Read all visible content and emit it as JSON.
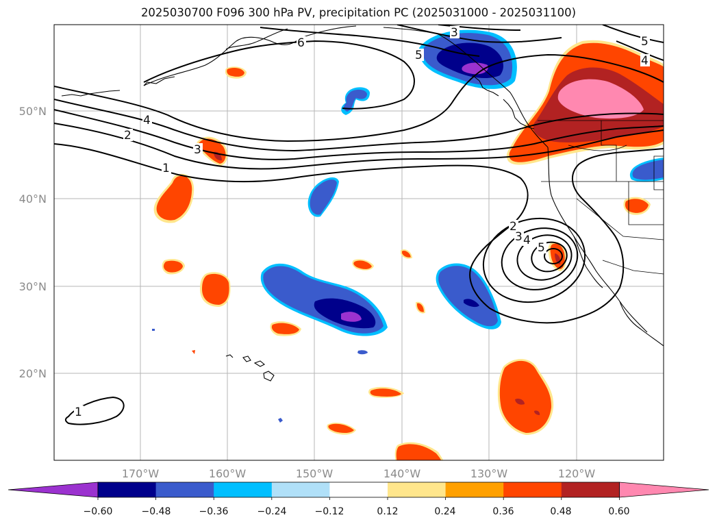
{
  "title": "2025030700 F096 300 hPa PV, precipitation PC (2025031000 - 2025031100)",
  "lon_labels": [
    "170°W",
    "160°W",
    "150°W",
    "140°W",
    "130°W",
    "120°W"
  ],
  "lat_labels": [
    "50°N",
    "40°N",
    "30°N",
    "20°N"
  ],
  "colorbar": {
    "tick_labels": [
      "−0.60",
      "−0.48",
      "−0.36",
      "−0.24",
      "−0.12",
      "0.12",
      "0.24",
      "0.36",
      "0.48",
      "0.60"
    ],
    "colors": [
      "#9b32cf",
      "#00008b",
      "#3a5bcc",
      "#00bfff",
      "#b0e0f8",
      "#ffffff",
      "#ffe68c",
      "#ffa000",
      "#ff4500",
      "#b22222",
      "#ff88b0"
    ]
  },
  "contour_labels": {
    "c1": "1",
    "c2": "2",
    "c3": "3",
    "c4": "4",
    "c5": "5",
    "c6": "6"
  }
}
